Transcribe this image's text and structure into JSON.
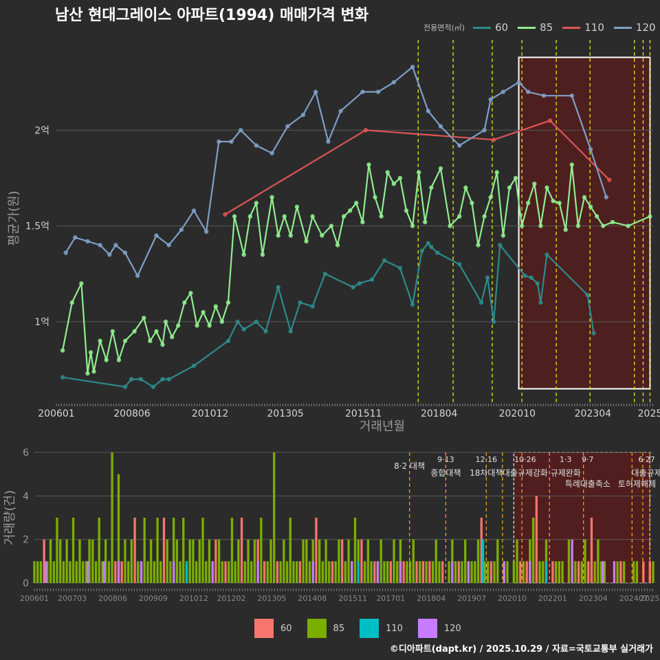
{
  "title": "남산 현대그레이스 아파트(1994) 매매가격 변화",
  "credit": "©디아파트(dapt.kr) / 2025.10.29 / 자료=국토교통부 실거래가",
  "colors": {
    "s60": "#2e8b8b",
    "s85": "#90ee90",
    "s110": "#e05555",
    "s120": "#7fa0c8",
    "b60": "#f8766d",
    "b85": "#7cae00",
    "b110": "#00bfc4",
    "b120": "#c77cff"
  },
  "legend": {
    "title": "전용면적(㎡)",
    "items": [
      {
        "label": "60",
        "color": "#2e8b8b"
      },
      {
        "label": "85",
        "color": "#90ee90"
      },
      {
        "label": "110",
        "color": "#e05555"
      },
      {
        "label": "120",
        "color": "#7fa0c8"
      }
    ]
  },
  "bottom_legend": {
    "items": [
      {
        "label": "60",
        "color": "#f8766d"
      },
      {
        "label": "85",
        "color": "#7cae00"
      },
      {
        "label": "110",
        "color": "#00bfc4"
      },
      {
        "label": "120",
        "color": "#c77cff"
      }
    ]
  },
  "chart_data": [
    {
      "type": "line",
      "title": "남산 현대그레이스 아파트(1994) 매매가격 변화",
      "xlabel": "거래년월",
      "ylabel": "평균가(원)",
      "x_tick_labels": [
        "200601",
        "200806",
        "201012",
        "201305",
        "201511",
        "201804",
        "202010",
        "202304",
        "2025"
      ],
      "x_tick_positions": [
        2006.0,
        2008.42,
        2010.92,
        2013.33,
        2015.83,
        2018.25,
        2020.75,
        2023.17,
        2025.0
      ],
      "y_tick_labels": [
        "1억",
        "1.5억",
        "2억"
      ],
      "y_tick_values": [
        1.0,
        1.5,
        2.0
      ],
      "xlim": [
        2006.0,
        2025.1
      ],
      "ylim": [
        0.58,
        2.5
      ],
      "ylabel_unit": "억",
      "policy_lines": [
        2017.58,
        2018.7,
        2019.95,
        2020.9,
        2022.0,
        2023.08,
        2024.5,
        2024.78,
        2025.0
      ],
      "highlight_region": [
        2020.8,
        2025.0
      ],
      "series": [
        {
          "name": "60",
          "x": [
            2006.2,
            2008.2,
            2008.4,
            2008.7,
            2009.1,
            2009.4,
            2009.6,
            2010.4,
            2011.5,
            2011.8,
            2012.0,
            2012.4,
            2012.7,
            2013.1,
            2013.5,
            2013.8,
            2014.2,
            2014.6,
            2015.5,
            2015.7,
            2016.1,
            2016.5,
            2017.0,
            2017.4,
            2017.7,
            2017.9,
            2018.0,
            2018.2,
            2018.9,
            2019.6,
            2019.8,
            2020.0,
            2020.2,
            2021.0,
            2021.2,
            2021.4,
            2021.5,
            2021.7,
            2023.0,
            2023.2
          ],
          "y": [
            0.71,
            0.66,
            0.7,
            0.7,
            0.66,
            0.7,
            0.7,
            0.77,
            0.9,
            1.0,
            0.96,
            1.0,
            0.95,
            1.18,
            0.95,
            1.1,
            1.08,
            1.25,
            1.18,
            1.2,
            1.22,
            1.32,
            1.28,
            1.09,
            1.37,
            1.41,
            1.39,
            1.36,
            1.3,
            1.1,
            1.23,
            1.0,
            1.4,
            1.24,
            1.23,
            1.2,
            1.1,
            1.35,
            1.14,
            0.94
          ]
        },
        {
          "name": "85",
          "x": [
            2006.2,
            2006.5,
            2006.8,
            2007.0,
            2007.1,
            2007.2,
            2007.4,
            2007.6,
            2007.8,
            2008.0,
            2008.2,
            2008.5,
            2008.8,
            2009.0,
            2009.2,
            2009.4,
            2009.5,
            2009.7,
            2009.9,
            2010.1,
            2010.3,
            2010.5,
            2010.7,
            2010.9,
            2011.1,
            2011.3,
            2011.5,
            2011.7,
            2012.0,
            2012.2,
            2012.4,
            2012.6,
            2012.9,
            2013.1,
            2013.3,
            2013.5,
            2013.7,
            2014.0,
            2014.2,
            2014.5,
            2014.8,
            2015.0,
            2015.2,
            2015.4,
            2015.6,
            2015.8,
            2016.0,
            2016.2,
            2016.4,
            2016.6,
            2016.8,
            2017.0,
            2017.2,
            2017.4,
            2017.6,
            2017.8,
            2018.0,
            2018.3,
            2018.6,
            2018.9,
            2019.1,
            2019.3,
            2019.5,
            2019.7,
            2019.9,
            2020.1,
            2020.3,
            2020.5,
            2020.7,
            2020.9,
            2021.1,
            2021.3,
            2021.5,
            2021.7,
            2021.9,
            2022.1,
            2022.3,
            2022.5,
            2022.7,
            2022.9,
            2023.1,
            2023.3,
            2023.5,
            2023.8,
            2024.3,
            2025.0
          ],
          "y": [
            0.85,
            1.1,
            1.2,
            0.73,
            0.84,
            0.74,
            0.9,
            0.8,
            0.95,
            0.8,
            0.9,
            0.95,
            1.02,
            0.9,
            0.95,
            0.88,
            1.0,
            0.92,
            0.98,
            1.1,
            1.15,
            0.98,
            1.05,
            0.98,
            1.08,
            1.0,
            1.1,
            1.55,
            1.35,
            1.55,
            1.62,
            1.35,
            1.65,
            1.45,
            1.55,
            1.45,
            1.6,
            1.42,
            1.55,
            1.45,
            1.5,
            1.4,
            1.55,
            1.58,
            1.62,
            1.52,
            1.82,
            1.65,
            1.55,
            1.78,
            1.72,
            1.75,
            1.58,
            1.5,
            1.78,
            1.52,
            1.7,
            1.8,
            1.5,
            1.55,
            1.7,
            1.62,
            1.4,
            1.55,
            1.65,
            1.78,
            1.45,
            1.7,
            1.75,
            1.5,
            1.62,
            1.72,
            1.5,
            1.7,
            1.63,
            1.62,
            1.48,
            1.82,
            1.5,
            1.65,
            1.6,
            1.55,
            1.5,
            1.52,
            1.5,
            1.55
          ]
        },
        {
          "name": "110",
          "x": [
            2011.4,
            2015.9,
            2020.0,
            2021.8,
            2023.7
          ],
          "y": [
            1.56,
            2.0,
            1.95,
            2.05,
            1.74
          ]
        },
        {
          "name": "120",
          "x": [
            2006.3,
            2006.6,
            2007.0,
            2007.4,
            2007.7,
            2007.9,
            2008.2,
            2008.6,
            2009.2,
            2009.6,
            2010.0,
            2010.4,
            2010.8,
            2011.2,
            2011.6,
            2011.9,
            2012.4,
            2012.9,
            2013.4,
            2013.9,
            2014.3,
            2014.7,
            2015.1,
            2015.8,
            2016.3,
            2016.8,
            2017.4,
            2017.9,
            2018.3,
            2018.9,
            2019.7,
            2019.9,
            2020.3,
            2020.8,
            2021.1,
            2021.6,
            2022.5,
            2023.1,
            2023.6
          ],
          "y": [
            1.36,
            1.44,
            1.42,
            1.4,
            1.35,
            1.4,
            1.36,
            1.24,
            1.45,
            1.4,
            1.48,
            1.58,
            1.47,
            1.94,
            1.94,
            2.0,
            1.92,
            1.88,
            2.02,
            2.08,
            2.2,
            1.94,
            2.1,
            2.2,
            2.2,
            2.25,
            2.33,
            2.1,
            2.02,
            1.92,
            2.0,
            2.16,
            2.2,
            2.25,
            2.2,
            2.18,
            2.18,
            1.9,
            1.65
          ]
        }
      ]
    },
    {
      "type": "bar",
      "title": "",
      "xlabel": "",
      "ylabel": "거래량(건)",
      "y_tick_labels": [
        "0",
        "2",
        "4",
        "6"
      ],
      "ylim": [
        0,
        6
      ],
      "x_tick_labels": [
        "200601",
        "200703",
        "200806",
        "200909",
        "201012",
        "201202",
        "201305",
        "201408",
        "201511",
        "201701",
        "201804",
        "201907",
        "202010",
        "202201",
        "202304",
        "202407",
        "2025"
      ],
      "x_tick_positions": [
        2006.0,
        2007.17,
        2008.42,
        2009.67,
        2010.92,
        2012.08,
        2013.33,
        2014.58,
        2015.83,
        2017.0,
        2018.25,
        2019.5,
        2020.75,
        2022.0,
        2023.25,
        2024.5,
        2025.0
      ],
      "xlim": [
        2006.0,
        2025.1
      ],
      "annotations": [
        {
          "x": 2017.58,
          "line1": "",
          "line2": "8·2 대책"
        },
        {
          "x": 2018.7,
          "line1": "9·13",
          "line2": "종합대책"
        },
        {
          "x": 2019.95,
          "line1": "12·16",
          "line2": "18차대책"
        },
        {
          "x": 2021.15,
          "line1": "10·26",
          "line2": "대출규제강화"
        },
        {
          "x": 2022.4,
          "line1": "1·3",
          "line2": "규제완화"
        },
        {
          "x": 2023.08,
          "line1": "9·7",
          "line2": "특례대출축소"
        },
        {
          "x": 2024.6,
          "line1": "",
          "line2": "토허제해제"
        },
        {
          "x": 2024.9,
          "line1": "6·27",
          "line2": "대출규제"
        }
      ],
      "highlight_region": [
        2020.8,
        2025.0
      ],
      "policy_lines": [
        2017.58,
        2018.7,
        2019.95,
        2020.45,
        2021.05,
        2021.9,
        2022.95,
        2024.45,
        2024.78,
        2025.0
      ],
      "series": [
        {
          "name": "60",
          "x": [
            2006.3,
            2008.5,
            2008.7,
            2009.1,
            2009.3,
            2010.0,
            2011.6,
            2011.9,
            2012.4,
            2012.9,
            2013.1,
            2013.5,
            2014.2,
            2014.7,
            2015.2,
            2015.5,
            2016.1,
            2016.5,
            2017.0,
            2017.4,
            2017.8,
            2018.0,
            2018.2,
            2018.6,
            2019.1,
            2019.8,
            2020.1,
            2020.5,
            2021.0,
            2021.2,
            2021.5,
            2022.0,
            2022.8,
            2023.1,
            2023.2,
            2024.1,
            2024.8,
            2025.0
          ],
          "values": [
            2,
            1,
            1,
            3,
            1,
            3,
            2,
            1,
            3,
            2,
            1,
            1,
            1,
            3,
            1,
            2,
            2,
            1,
            1,
            1,
            1,
            1,
            1,
            1,
            1,
            3,
            1,
            1,
            1,
            1,
            4,
            1,
            1,
            1,
            3,
            1,
            1,
            1
          ]
        },
        {
          "name": "85",
          "x": [
            2006.0,
            2006.1,
            2006.2,
            2006.4,
            2006.5,
            2006.6,
            2006.7,
            2006.8,
            2006.9,
            2007.0,
            2007.1,
            2007.2,
            2007.3,
            2007.4,
            2007.5,
            2007.6,
            2007.7,
            2007.8,
            2007.9,
            2008.0,
            2008.1,
            2008.2,
            2008.3,
            2008.4,
            2008.6,
            2008.8,
            2008.9,
            2009.0,
            2009.2,
            2009.4,
            2009.5,
            2009.6,
            2009.7,
            2009.8,
            2009.9,
            2010.1,
            2010.2,
            2010.3,
            2010.4,
            2010.5,
            2010.6,
            2010.7,
            2010.8,
            2010.9,
            2011.0,
            2011.1,
            2011.2,
            2011.3,
            2011.4,
            2011.5,
            2011.7,
            2011.8,
            2012.0,
            2012.1,
            2012.2,
            2012.3,
            2012.5,
            2012.6,
            2012.7,
            2012.8,
            2013.0,
            2013.2,
            2013.3,
            2013.4,
            2013.6,
            2013.7,
            2013.8,
            2013.9,
            2014.0,
            2014.1,
            2014.3,
            2014.4,
            2014.5,
            2014.6,
            2014.8,
            2014.9,
            2015.0,
            2015.1,
            2015.3,
            2015.4,
            2015.6,
            2015.7,
            2015.8,
            2015.9,
            2016.0,
            2016.2,
            2016.3,
            2016.4,
            2016.6,
            2016.7,
            2016.8,
            2016.9,
            2017.1,
            2017.2,
            2017.3,
            2017.5,
            2017.6,
            2017.7,
            2017.9,
            2018.1,
            2018.3,
            2018.4,
            2018.5,
            2018.8,
            2018.9,
            2019.0,
            2019.2,
            2019.3,
            2019.4,
            2019.5,
            2019.6,
            2019.7,
            2019.9,
            2020.0,
            2020.2,
            2020.3,
            2020.6,
            2020.8,
            2020.9,
            2021.1,
            2021.3,
            2021.4,
            2021.6,
            2021.7,
            2021.8,
            2022.1,
            2022.2,
            2022.3,
            2022.5,
            2022.6,
            2022.7,
            2022.9,
            2023.0,
            2023.3,
            2023.4,
            2023.5,
            2023.6,
            2024.0,
            2024.2,
            2024.5,
            2024.6,
            2025.1
          ],
          "values": [
            1,
            1,
            1,
            1,
            2,
            1,
            3,
            2,
            1,
            2,
            1,
            3,
            1,
            2,
            1,
            1,
            2,
            2,
            1,
            3,
            1,
            2,
            1,
            6,
            5,
            2,
            1,
            2,
            1,
            3,
            1,
            2,
            1,
            3,
            1,
            2,
            1,
            3,
            2,
            1,
            3,
            1,
            2,
            2,
            1,
            2,
            3,
            1,
            2,
            1,
            2,
            1,
            1,
            3,
            1,
            2,
            1,
            2,
            1,
            2,
            3,
            1,
            2,
            6,
            1,
            2,
            1,
            3,
            1,
            1,
            2,
            2,
            1,
            2,
            2,
            1,
            2,
            1,
            1,
            2,
            1,
            2,
            1,
            3,
            2,
            1,
            2,
            1,
            1,
            2,
            1,
            1,
            2,
            1,
            2,
            1,
            1,
            2,
            1,
            1,
            1,
            2,
            1,
            1,
            2,
            1,
            1,
            2,
            1,
            1,
            1,
            2,
            1,
            1,
            1,
            2,
            1,
            1,
            2,
            1,
            2,
            3,
            1,
            1,
            2,
            1,
            1,
            1,
            2,
            1,
            1,
            1,
            2,
            1,
            2,
            1,
            1,
            1,
            1,
            1,
            1,
            1
          ]
        },
        {
          "name": "110",
          "x": [
            2010.7,
            2016.0,
            2019.85,
            2021.8
          ],
          "values": [
            1,
            1,
            2,
            1
          ]
        },
        {
          "name": "120",
          "x": [
            2006.35,
            2007.65,
            2008.15,
            2008.6,
            2009.3,
            2010.3,
            2011.5,
            2012.9,
            2014.6,
            2015.8,
            2016.6,
            2017.3,
            2018.9,
            2019.4,
            2020.5,
            2021.3,
            2022.6,
            2023.55,
            2023.9
          ],
          "values": [
            1,
            1,
            1,
            1,
            1,
            1,
            1,
            1,
            1,
            1,
            1,
            1,
            1,
            1,
            1,
            1,
            2,
            1,
            1
          ]
        }
      ]
    }
  ]
}
